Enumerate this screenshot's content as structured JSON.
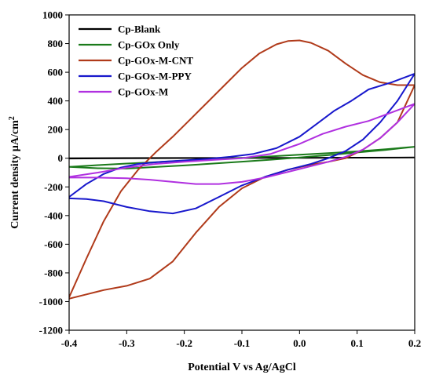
{
  "chart_data": {
    "type": "line",
    "title": "",
    "xlabel": "Potential V vs Ag/AgCl",
    "ylabel": "Current density µA/cm",
    "ylabel_superscript": "2",
    "xlim": [
      -0.4,
      0.2
    ],
    "ylim": [
      -1200,
      1000
    ],
    "xticks": [
      -0.4,
      -0.3,
      -0.2,
      -0.1,
      0.0,
      0.1,
      0.2
    ],
    "xtick_labels": [
      "-0.4",
      "-0.3",
      "-0.2",
      "-0.1",
      "0.0",
      "0.1",
      "0.2"
    ],
    "yticks": [
      -1200,
      -1000,
      -800,
      -600,
      -400,
      -200,
      0,
      200,
      400,
      600,
      800,
      1000
    ],
    "ytick_labels": [
      "-1200",
      "-1000",
      "-800",
      "-600",
      "-400",
      "-200",
      "0",
      "200",
      "400",
      "600",
      "800",
      "1000"
    ],
    "grid": false,
    "legend_position": "top-left",
    "series": [
      {
        "name": "Cp-Blank",
        "color": "#000000",
        "points": [
          [
            -0.4,
            0
          ],
          [
            -0.3,
            1
          ],
          [
            -0.2,
            2
          ],
          [
            -0.1,
            2
          ],
          [
            0.0,
            3
          ],
          [
            0.1,
            4
          ],
          [
            0.2,
            5
          ],
          [
            0.1,
            4
          ],
          [
            0.0,
            3
          ],
          [
            -0.1,
            2
          ],
          [
            -0.2,
            1
          ],
          [
            -0.3,
            0
          ],
          [
            -0.4,
            -2
          ]
        ]
      },
      {
        "name": "Cp-GOx Only",
        "color": "#1a7a1a",
        "points": [
          [
            -0.4,
            -60
          ],
          [
            -0.35,
            -48
          ],
          [
            -0.3,
            -37
          ],
          [
            -0.25,
            -27
          ],
          [
            -0.2,
            -17
          ],
          [
            -0.15,
            -7
          ],
          [
            -0.1,
            3
          ],
          [
            -0.05,
            13
          ],
          [
            0.0,
            24
          ],
          [
            0.05,
            35
          ],
          [
            0.1,
            48
          ],
          [
            0.15,
            63
          ],
          [
            0.2,
            80
          ],
          [
            0.15,
            58
          ],
          [
            0.1,
            40
          ],
          [
            0.05,
            22
          ],
          [
            0.0,
            5
          ],
          [
            -0.05,
            -10
          ],
          [
            -0.1,
            -24
          ],
          [
            -0.15,
            -37
          ],
          [
            -0.2,
            -50
          ],
          [
            -0.25,
            -61
          ],
          [
            -0.3,
            -72
          ],
          [
            -0.35,
            -70
          ],
          [
            -0.4,
            -60
          ]
        ]
      },
      {
        "name": "Cp-GOx-M-CNT",
        "color": "#b03a1a",
        "points": [
          [
            -0.4,
            -970
          ],
          [
            -0.37,
            -700
          ],
          [
            -0.34,
            -440
          ],
          [
            -0.31,
            -230
          ],
          [
            -0.28,
            -80
          ],
          [
            -0.25,
            40
          ],
          [
            -0.22,
            150
          ],
          [
            -0.19,
            270
          ],
          [
            -0.16,
            390
          ],
          [
            -0.13,
            510
          ],
          [
            -0.1,
            630
          ],
          [
            -0.07,
            730
          ],
          [
            -0.04,
            795
          ],
          [
            -0.02,
            818
          ],
          [
            0.0,
            822
          ],
          [
            0.02,
            805
          ],
          [
            0.05,
            750
          ],
          [
            0.08,
            660
          ],
          [
            0.11,
            580
          ],
          [
            0.14,
            530
          ],
          [
            0.17,
            510
          ],
          [
            0.2,
            510
          ],
          [
            0.17,
            250
          ],
          [
            0.14,
            140
          ],
          [
            0.11,
            60
          ],
          [
            0.08,
            0
          ],
          [
            0.05,
            -25
          ],
          [
            0.02,
            -45
          ],
          [
            -0.02,
            -80
          ],
          [
            -0.06,
            -130
          ],
          [
            -0.1,
            -210
          ],
          [
            -0.14,
            -340
          ],
          [
            -0.18,
            -520
          ],
          [
            -0.22,
            -720
          ],
          [
            -0.26,
            -840
          ],
          [
            -0.3,
            -890
          ],
          [
            -0.34,
            -920
          ],
          [
            -0.37,
            -950
          ],
          [
            -0.4,
            -980
          ]
        ]
      },
      {
        "name": "Cp-GOx-M-PPY",
        "color": "#1818cc",
        "points": [
          [
            -0.4,
            -270
          ],
          [
            -0.37,
            -180
          ],
          [
            -0.34,
            -110
          ],
          [
            -0.31,
            -65
          ],
          [
            -0.28,
            -40
          ],
          [
            -0.24,
            -25
          ],
          [
            -0.2,
            -15
          ],
          [
            -0.16,
            -5
          ],
          [
            -0.12,
            10
          ],
          [
            -0.08,
            30
          ],
          [
            -0.04,
            70
          ],
          [
            0.0,
            150
          ],
          [
            0.03,
            240
          ],
          [
            0.06,
            330
          ],
          [
            0.09,
            400
          ],
          [
            0.12,
            480
          ],
          [
            0.16,
            530
          ],
          [
            0.2,
            590
          ],
          [
            0.17,
            400
          ],
          [
            0.14,
            250
          ],
          [
            0.11,
            130
          ],
          [
            0.08,
            50
          ],
          [
            0.05,
            0
          ],
          [
            0.02,
            -40
          ],
          [
            -0.02,
            -80
          ],
          [
            -0.06,
            -130
          ],
          [
            -0.1,
            -190
          ],
          [
            -0.14,
            -270
          ],
          [
            -0.18,
            -350
          ],
          [
            -0.22,
            -385
          ],
          [
            -0.26,
            -370
          ],
          [
            -0.3,
            -340
          ],
          [
            -0.34,
            -300
          ],
          [
            -0.37,
            -285
          ],
          [
            -0.4,
            -280
          ]
        ]
      },
      {
        "name": "Cp-GOx-M",
        "color": "#b030e0",
        "points": [
          [
            -0.4,
            -130
          ],
          [
            -0.35,
            -100
          ],
          [
            -0.3,
            -65
          ],
          [
            -0.25,
            -40
          ],
          [
            -0.2,
            -25
          ],
          [
            -0.15,
            -12
          ],
          [
            -0.1,
            0
          ],
          [
            -0.05,
            30
          ],
          [
            0.0,
            100
          ],
          [
            0.04,
            170
          ],
          [
            0.08,
            220
          ],
          [
            0.12,
            260
          ],
          [
            0.16,
            320
          ],
          [
            0.2,
            380
          ],
          [
            0.17,
            250
          ],
          [
            0.14,
            140
          ],
          [
            0.11,
            60
          ],
          [
            0.08,
            10
          ],
          [
            0.05,
            -25
          ],
          [
            0.02,
            -55
          ],
          [
            -0.02,
            -95
          ],
          [
            -0.06,
            -135
          ],
          [
            -0.1,
            -165
          ],
          [
            -0.14,
            -180
          ],
          [
            -0.18,
            -180
          ],
          [
            -0.22,
            -165
          ],
          [
            -0.26,
            -150
          ],
          [
            -0.3,
            -140
          ],
          [
            -0.35,
            -135
          ],
          [
            -0.4,
            -135
          ]
        ]
      }
    ]
  }
}
